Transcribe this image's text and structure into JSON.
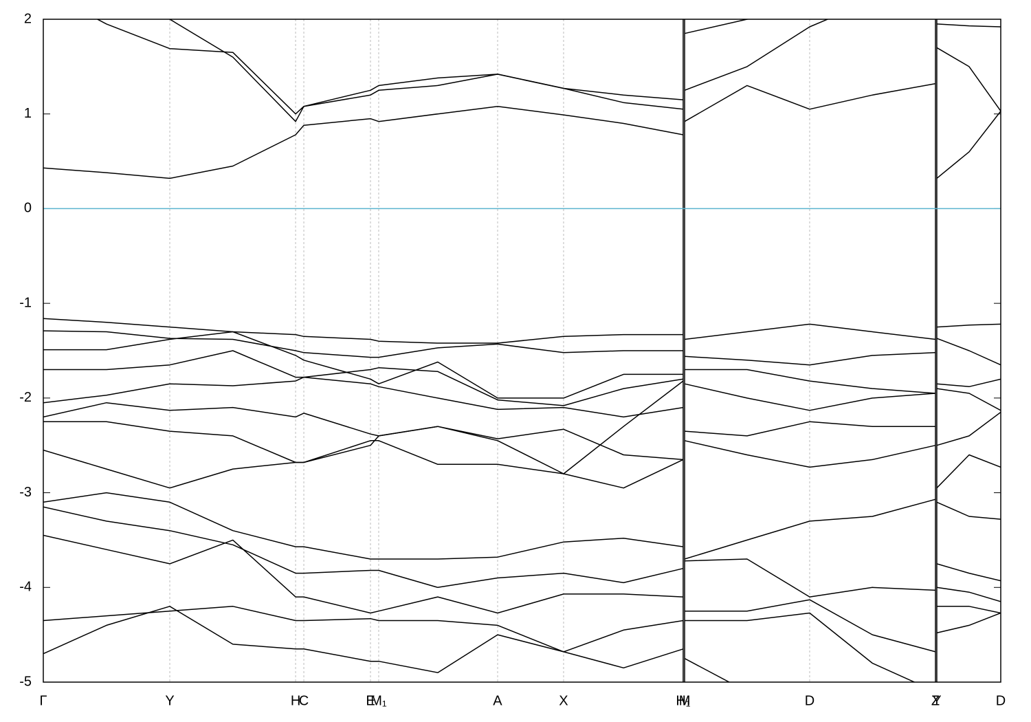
{
  "chart_data": {
    "type": "line",
    "xlim": [
      0,
      100
    ],
    "ylim": [
      -5,
      2
    ],
    "yticks": [
      -5,
      -4,
      -3,
      -2,
      -1,
      0,
      1,
      2
    ],
    "xticks": [
      {
        "value": 0,
        "label": "Γ"
      },
      {
        "value": 13.21,
        "label": "Y"
      },
      {
        "value": 26.35,
        "label": "H"
      },
      {
        "value": 27.21,
        "label": "C"
      },
      {
        "value": 34.17,
        "label": "E"
      },
      {
        "value": 35.03,
        "label": "M₁"
      },
      {
        "value": 47.45,
        "label": "A"
      },
      {
        "value": 54.34,
        "label": "X"
      },
      {
        "value": 66.83,
        "label": "H₁"
      },
      {
        "value": 66.98,
        "label": "M"
      },
      {
        "value": 80.04,
        "label": "D"
      },
      {
        "value": 93.18,
        "label": "Z"
      },
      {
        "value": 93.32,
        "label": "Y"
      },
      {
        "value": 100,
        "label": "D"
      }
    ],
    "grid": true,
    "hline": 0,
    "hline_color": "#5bb4cf",
    "x": [
      0,
      6.6,
      13.21,
      19.8,
      26.35,
      27.21,
      34.17,
      35.03,
      41.2,
      47.45,
      54.34,
      60.6,
      66.83,
      66.9,
      66.98,
      73.5,
      80.04,
      86.6,
      93.18,
      93.25,
      93.32,
      96.7,
      100
    ],
    "series": [
      {
        "color": "#000000",
        "values": [
          0.43,
          0.38,
          0.32,
          0.45,
          0.78,
          0.88,
          0.95,
          0.92,
          1.0,
          1.08,
          0.99,
          0.9,
          0.78,
          null,
          0.92,
          1.3,
          1.05,
          1.2,
          1.32,
          null,
          0.32,
          0.6,
          1.03
        ]
      },
      {
        "color": "#000000",
        "values": [
          2.3,
          1.95,
          1.69,
          1.65,
          1.0,
          1.08,
          1.25,
          1.3,
          1.38,
          1.42,
          1.27,
          1.2,
          1.15,
          null,
          1.25,
          1.5,
          1.92,
          2.2,
          2.3,
          null,
          1.7,
          1.5,
          1.03
        ]
      },
      {
        "color": "#000000",
        "values": [
          2.5,
          2.2,
          2.0,
          1.6,
          0.92,
          1.08,
          1.2,
          1.25,
          1.3,
          1.42,
          1.27,
          1.12,
          1.05,
          null,
          1.85,
          2.0,
          2.1,
          2.3,
          2.4,
          null,
          1.95,
          1.93,
          1.92
        ]
      },
      {
        "color": "#000000",
        "values": [
          -1.16,
          -1.2,
          -1.25,
          -1.3,
          -1.33,
          -1.35,
          -1.38,
          -1.4,
          -1.42,
          -1.42,
          -1.35,
          -1.33,
          -1.33,
          null,
          -1.38,
          -1.3,
          -1.22,
          -1.3,
          -1.38,
          null,
          -1.25,
          -1.23,
          -1.22
        ]
      },
      {
        "color": "#000000",
        "values": [
          -1.29,
          -1.3,
          -1.37,
          -1.38,
          -1.5,
          -1.52,
          -1.57,
          -1.57,
          -1.47,
          -1.43,
          -1.52,
          -1.5,
          -1.5,
          null,
          -1.56,
          -1.6,
          -1.65,
          -1.55,
          -1.52,
          null,
          -1.37,
          -1.5,
          -1.65
        ]
      },
      {
        "color": "#000000",
        "values": [
          -1.49,
          -1.49,
          -1.38,
          -1.3,
          -1.55,
          -1.6,
          -1.8,
          -1.85,
          -1.62,
          -2.0,
          -2.0,
          -1.75,
          -1.75,
          null,
          -1.7,
          -1.7,
          -1.82,
          -1.9,
          -1.95,
          null,
          -1.85,
          -1.88,
          -1.8
        ]
      },
      {
        "color": "#000000",
        "values": [
          -1.7,
          -1.7,
          -1.65,
          -1.5,
          -1.78,
          -1.78,
          -1.7,
          -1.68,
          -1.72,
          -2.02,
          -2.08,
          -1.9,
          -1.8,
          null,
          -1.85,
          -2.0,
          -2.13,
          -2.0,
          -1.95,
          null,
          -1.9,
          -1.95,
          -2.13
        ]
      },
      {
        "color": "#000000",
        "values": [
          -2.05,
          -1.97,
          -1.85,
          -1.87,
          -1.82,
          -1.78,
          -1.85,
          -1.88,
          -2.0,
          -2.12,
          -2.1,
          -2.2,
          -2.1,
          null,
          -2.35,
          -2.4,
          -2.25,
          -2.3,
          -2.3,
          null,
          -2.5,
          -2.4,
          -2.15
        ]
      },
      {
        "color": "#000000",
        "values": [
          -2.2,
          -2.05,
          -2.13,
          -2.1,
          -2.2,
          -2.16,
          -2.38,
          -2.4,
          -2.3,
          -2.43,
          -2.33,
          -2.6,
          -2.65,
          null,
          -2.45,
          -2.6,
          -2.73,
          -2.65,
          -2.5,
          null,
          -2.95,
          -2.6,
          -2.73
        ]
      },
      {
        "color": "#000000",
        "values": [
          -2.25,
          -2.25,
          -2.35,
          -2.4,
          -2.68,
          -2.68,
          -2.45,
          -2.45,
          -2.7,
          -2.7,
          -2.8,
          -2.3,
          -1.82,
          null,
          -3.7,
          -3.5,
          -3.3,
          -3.25,
          -3.07,
          null,
          -3.1,
          -3.25,
          -3.28
        ]
      },
      {
        "color": "#000000",
        "values": [
          -2.55,
          -2.75,
          -2.95,
          -2.75,
          -2.68,
          -2.68,
          -2.5,
          -2.4,
          -2.3,
          -2.45,
          -2.8,
          -2.95,
          -2.65,
          null,
          -3.72,
          -3.7,
          -4.1,
          -4.0,
          -4.03,
          null,
          -3.75,
          -3.85,
          -3.93
        ]
      },
      {
        "color": "#000000",
        "values": [
          -3.1,
          -3.0,
          -3.1,
          -3.4,
          -3.57,
          -3.57,
          -3.7,
          -3.7,
          -3.7,
          -3.68,
          -3.52,
          -3.48,
          -3.57,
          null,
          -4.25,
          -4.25,
          -4.13,
          -4.5,
          -4.68,
          null,
          -4.0,
          -4.05,
          -4.15
        ]
      },
      {
        "color": "#000000",
        "values": [
          -3.15,
          -3.3,
          -3.4,
          -3.55,
          -3.85,
          -3.85,
          -3.82,
          -3.82,
          -4.0,
          -3.9,
          -3.85,
          -3.95,
          -3.8,
          null,
          -4.35,
          -4.35,
          -4.27,
          -4.8,
          -5.1,
          null,
          -4.2,
          -4.2,
          -4.27
        ]
      },
      {
        "color": "#000000",
        "values": [
          -3.45,
          -3.6,
          -3.75,
          -3.5,
          -4.1,
          -4.1,
          -4.27,
          -4.25,
          -4.1,
          -4.27,
          -4.07,
          -4.07,
          -4.1,
          null,
          -4.75,
          -5.1,
          -5.3,
          -5.4,
          -5.5,
          null,
          -4.48,
          -4.4,
          -4.27
        ]
      },
      {
        "color": "#000000",
        "values": [
          -4.35,
          -4.3,
          -4.25,
          -4.2,
          -4.35,
          -4.35,
          -4.33,
          -4.35,
          -4.35,
          -4.4,
          -4.68,
          -4.45,
          -4.35,
          null,
          null,
          null,
          null,
          null,
          null,
          null,
          null,
          null,
          null
        ]
      },
      {
        "color": "#000000",
        "values": [
          -4.7,
          -4.4,
          -4.2,
          -4.6,
          -4.65,
          -4.65,
          -4.78,
          -4.78,
          -4.9,
          -4.5,
          -4.68,
          -4.85,
          -4.65,
          null,
          null,
          null,
          null,
          null,
          null,
          null,
          null,
          null,
          null
        ]
      }
    ]
  }
}
